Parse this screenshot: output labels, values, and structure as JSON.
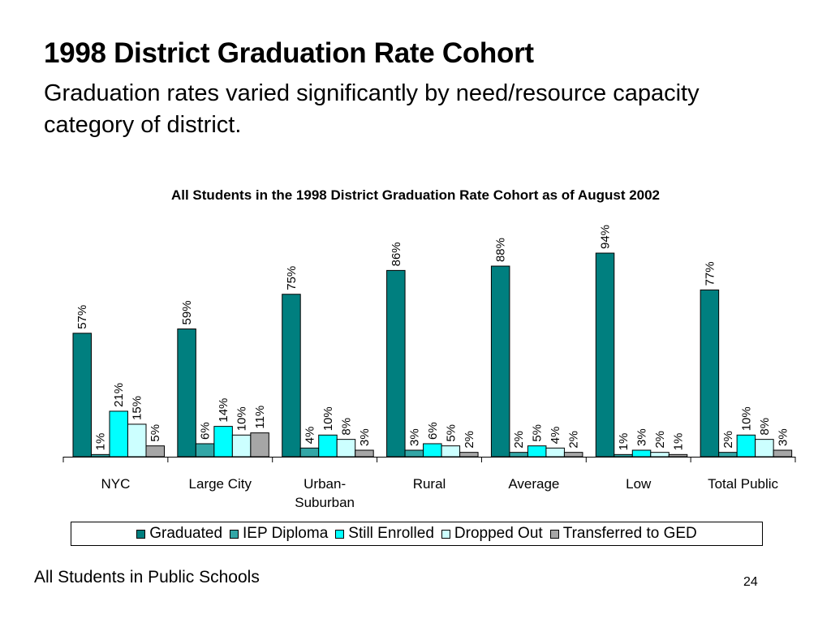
{
  "slide": {
    "title": "1998 District Graduation Rate Cohort",
    "subtitle": "Graduation rates varied significantly by need/resource capacity category of district.",
    "footer": "All Students in Public Schools",
    "page_number": "24"
  },
  "chart_data": {
    "type": "bar",
    "title": "All Students in the 1998 District Graduation Rate Cohort as of August 2002",
    "xlabel": "",
    "ylabel": "",
    "ylim": [
      0,
      100
    ],
    "grid": false,
    "legend_position": "bottom",
    "categories": [
      "NYC",
      "Large City",
      "Urban-Suburban",
      "Rural",
      "Average",
      "Low",
      "Total Public"
    ],
    "category_display": [
      [
        "NYC"
      ],
      [
        "Large City"
      ],
      [
        "Urban-",
        "Suburban"
      ],
      [
        "Rural"
      ],
      [
        "Average"
      ],
      [
        "Low"
      ],
      [
        "Total Public"
      ]
    ],
    "series": [
      {
        "name": "Graduated",
        "color": "#007F7F",
        "values": [
          57,
          59,
          75,
          86,
          88,
          94,
          77
        ]
      },
      {
        "name": "IEP Diploma",
        "color": "#33A6A6",
        "values": [
          1,
          6,
          4,
          3,
          2,
          1,
          2
        ]
      },
      {
        "name": "Still Enrolled",
        "color": "#00FFFF",
        "values": [
          21,
          14,
          10,
          6,
          5,
          3,
          10
        ]
      },
      {
        "name": "Dropped Out",
        "color": "#CCFFFF",
        "values": [
          15,
          10,
          8,
          5,
          4,
          2,
          8
        ]
      },
      {
        "name": "Transferred to GED",
        "color": "#A6A6A6",
        "values": [
          5,
          11,
          3,
          2,
          2,
          1,
          3
        ]
      }
    ],
    "value_suffix": "%"
  }
}
